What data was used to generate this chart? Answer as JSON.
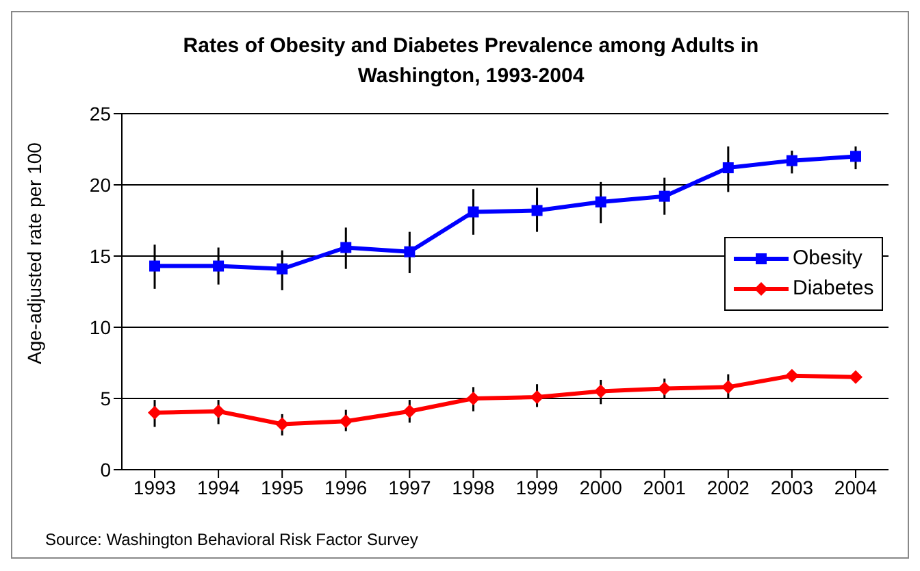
{
  "chart_data": {
    "type": "line",
    "title": "Rates of Obesity and Diabetes Prevalence among Adults in Washington, 1993-2004",
    "ylabel": "Age-adjusted rate per 100",
    "annotations": [
      "Source: Washington Behavioral Risk Factor Survey"
    ],
    "categories": [
      "1993",
      "1994",
      "1995",
      "1996",
      "1997",
      "1998",
      "1999",
      "2000",
      "2001",
      "2002",
      "2003",
      "2004"
    ],
    "series": [
      {
        "name": "Obesity",
        "color": "#0000ff",
        "marker": "square",
        "values": [
          14.3,
          14.3,
          14.1,
          15.6,
          15.3,
          18.1,
          18.2,
          18.8,
          19.2,
          21.2,
          21.7,
          22.0
        ],
        "errors": [
          [
            12.7,
            15.8
          ],
          [
            13.0,
            15.6
          ],
          [
            12.6,
            15.4
          ],
          [
            14.1,
            17.0
          ],
          [
            13.8,
            16.7
          ],
          [
            16.5,
            19.7
          ],
          [
            16.7,
            19.8
          ],
          [
            17.3,
            20.2
          ],
          [
            17.9,
            20.5
          ],
          [
            19.5,
            22.7
          ],
          [
            20.8,
            22.4
          ],
          [
            21.1,
            22.7
          ]
        ]
      },
      {
        "name": "Diabetes",
        "color": "#ff0000",
        "marker": "diamond",
        "values": [
          4.0,
          4.1,
          3.2,
          3.4,
          4.1,
          5.0,
          5.1,
          5.5,
          5.7,
          5.8,
          6.6,
          6.5
        ],
        "errors": [
          [
            3.0,
            4.9
          ],
          [
            3.2,
            4.9
          ],
          [
            2.4,
            3.9
          ],
          [
            2.7,
            4.2
          ],
          [
            3.3,
            4.9
          ],
          [
            4.1,
            5.8
          ],
          [
            4.4,
            6.0
          ],
          [
            4.6,
            6.3
          ],
          [
            5.0,
            6.4
          ],
          [
            5.0,
            6.7
          ],
          null,
          null
        ]
      }
    ],
    "ylim": [
      0,
      25
    ],
    "yticks": [
      0,
      5,
      10,
      15,
      20,
      25
    ],
    "grid": "y",
    "legend": "right"
  }
}
